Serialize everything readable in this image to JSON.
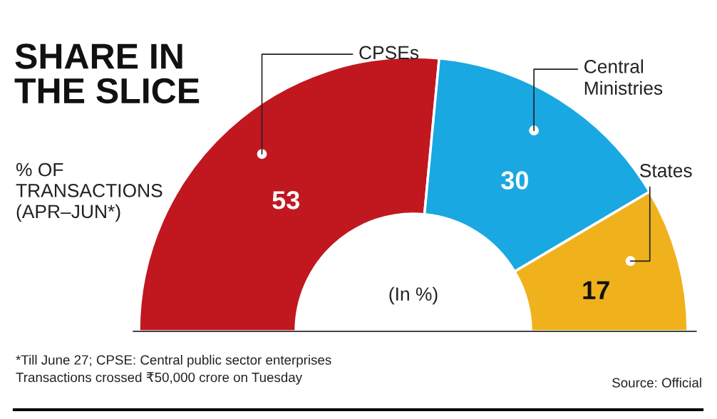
{
  "chart_data": {
    "type": "donut",
    "title": "SHARE IN\nTHE SLICE",
    "subtitle": "% OF\nTRANSACTIONS\n(APR–JUN*)",
    "categories": [
      "CPSEs",
      "Central\nMinistries",
      "States"
    ],
    "values": [
      53,
      30,
      17
    ],
    "colors": [
      "#c1171f",
      "#19a8e2",
      "#efb21c"
    ],
    "data_labels": true,
    "annotations": [
      "(In %)",
      "*Till June 27; CPSE: Central public sector enterprises\nTransactions crossed ₹50,000 crore on Tuesday",
      "Source: Official"
    ]
  }
}
